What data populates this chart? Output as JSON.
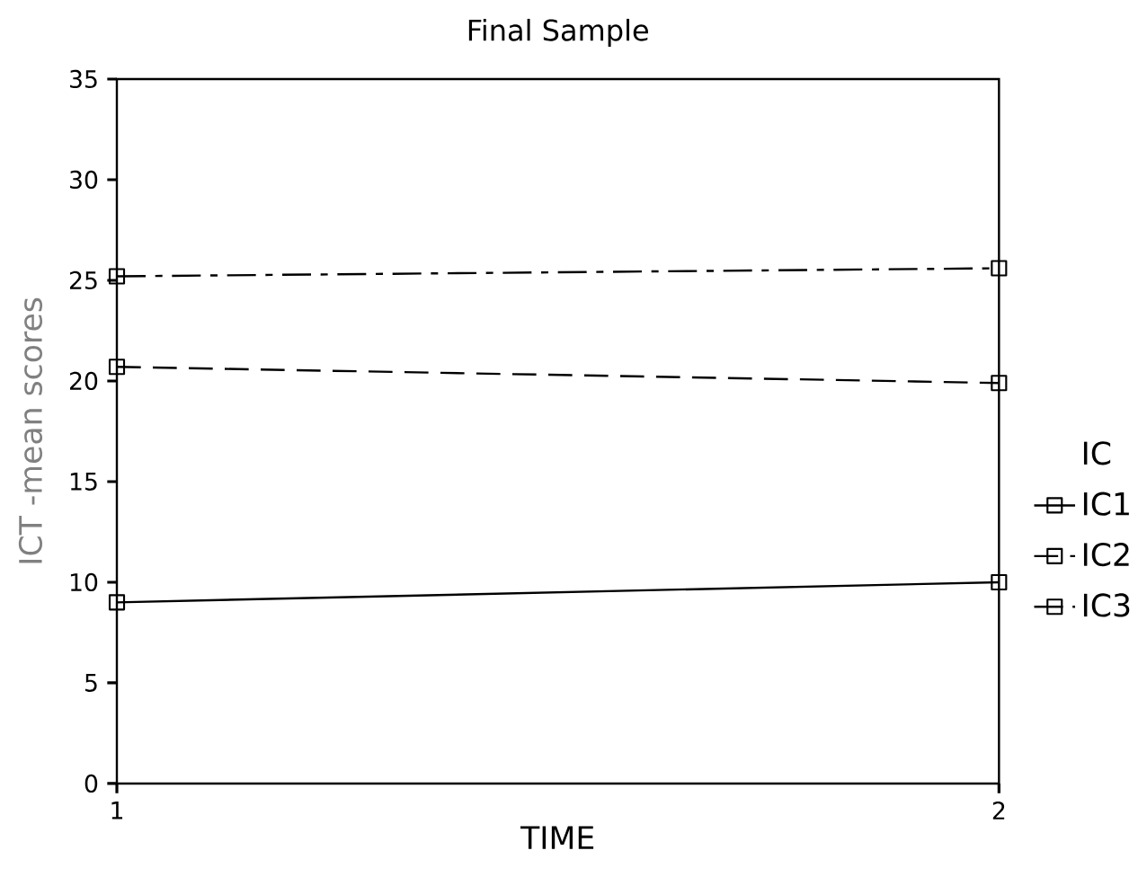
{
  "chart_data": {
    "type": "line",
    "title": "Final Sample",
    "xlabel": "TIME",
    "ylabel": "ICT -mean scores",
    "legend_title": "IC",
    "x": [
      1,
      2
    ],
    "xlim": [
      1,
      2
    ],
    "xticks": [
      1,
      2
    ],
    "ylim": [
      0,
      35
    ],
    "yticks": [
      0,
      5,
      10,
      15,
      20,
      25,
      30,
      35
    ],
    "marker": "square",
    "legend": "right",
    "series": [
      {
        "name": "IC1",
        "color": "#000000",
        "line_style": "solid",
        "values": [
          9.0,
          10.0
        ]
      },
      {
        "name": "IC2",
        "color": "#000000",
        "line_style": "dashed",
        "values": [
          20.7,
          19.9
        ]
      },
      {
        "name": "IC3",
        "color": "#000000",
        "line_style": "dashdot",
        "values": [
          25.2,
          25.6
        ]
      }
    ]
  }
}
